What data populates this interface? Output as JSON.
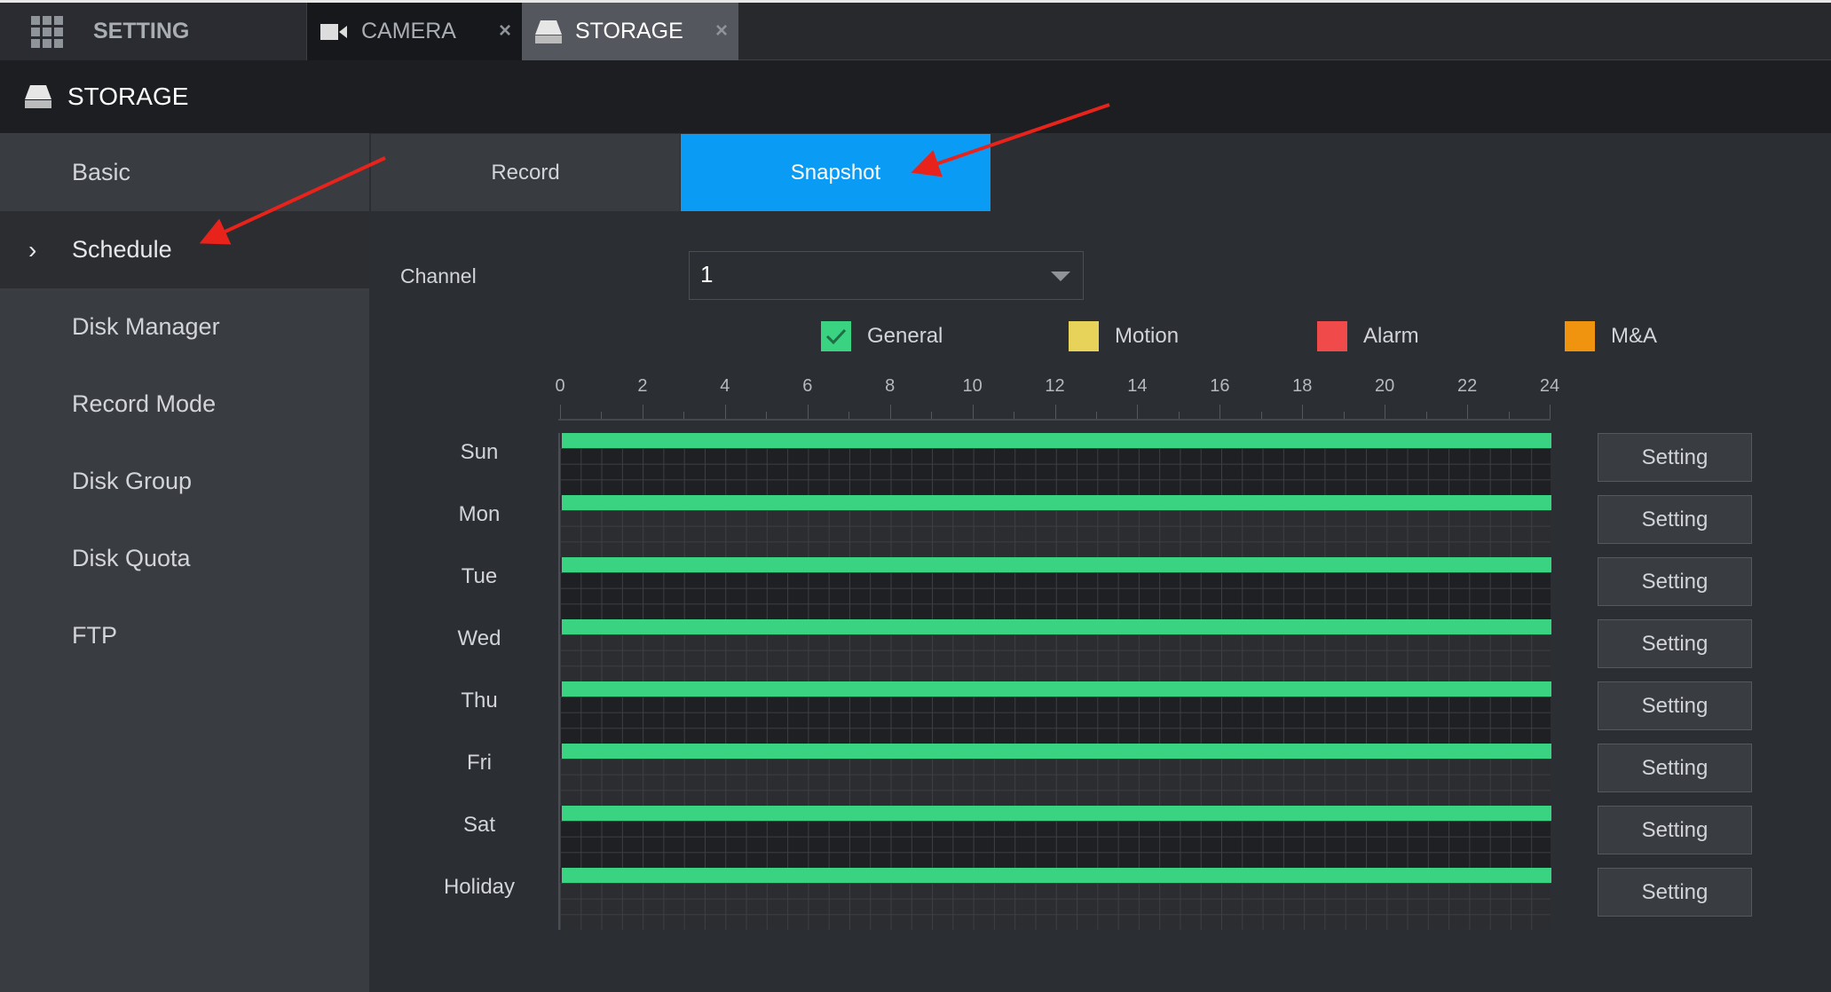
{
  "topbar": {
    "tabs": [
      {
        "label": "SETTING",
        "icon": "grid-icon"
      },
      {
        "label": "CAMERA",
        "icon": "camera-icon",
        "close": "×"
      },
      {
        "label": "STORAGE",
        "icon": "hdd-icon",
        "close": "×"
      }
    ]
  },
  "header": {
    "title": "STORAGE",
    "icon": "hdd-icon"
  },
  "sidebar": {
    "items": [
      {
        "label": "Basic"
      },
      {
        "label": "Schedule",
        "selected": true
      },
      {
        "label": "Disk Manager"
      },
      {
        "label": "Record Mode"
      },
      {
        "label": "Disk Group"
      },
      {
        "label": "Disk Quota"
      },
      {
        "label": "FTP"
      }
    ]
  },
  "main": {
    "tabs": [
      {
        "label": "Record"
      },
      {
        "label": "Snapshot",
        "active": true
      }
    ],
    "channel": {
      "label": "Channel",
      "value": "1"
    },
    "legend": [
      {
        "label": "General",
        "color": "#3ad382",
        "checked": true
      },
      {
        "label": "Motion",
        "color": "#e8d35a"
      },
      {
        "label": "Alarm",
        "color": "#f04a4a"
      },
      {
        "label": "M&A",
        "color": "#f0930f"
      }
    ],
    "hours": [
      "0",
      "2",
      "4",
      "6",
      "8",
      "10",
      "12",
      "14",
      "16",
      "18",
      "20",
      "22",
      "24"
    ],
    "days": [
      {
        "label": "Sun",
        "schedule": "0-24",
        "button": "Setting"
      },
      {
        "label": "Mon",
        "schedule": "0-24",
        "button": "Setting"
      },
      {
        "label": "Tue",
        "schedule": "0-24",
        "button": "Setting"
      },
      {
        "label": "Wed",
        "schedule": "0-24",
        "button": "Setting"
      },
      {
        "label": "Thu",
        "schedule": "0-24",
        "button": "Setting"
      },
      {
        "label": "Fri",
        "schedule": "0-24",
        "button": "Setting"
      },
      {
        "label": "Sat",
        "schedule": "0-24",
        "button": "Setting"
      },
      {
        "label": "Holiday",
        "schedule": "0-24",
        "button": "Setting"
      }
    ]
  },
  "annotation_color": "#e8231c"
}
